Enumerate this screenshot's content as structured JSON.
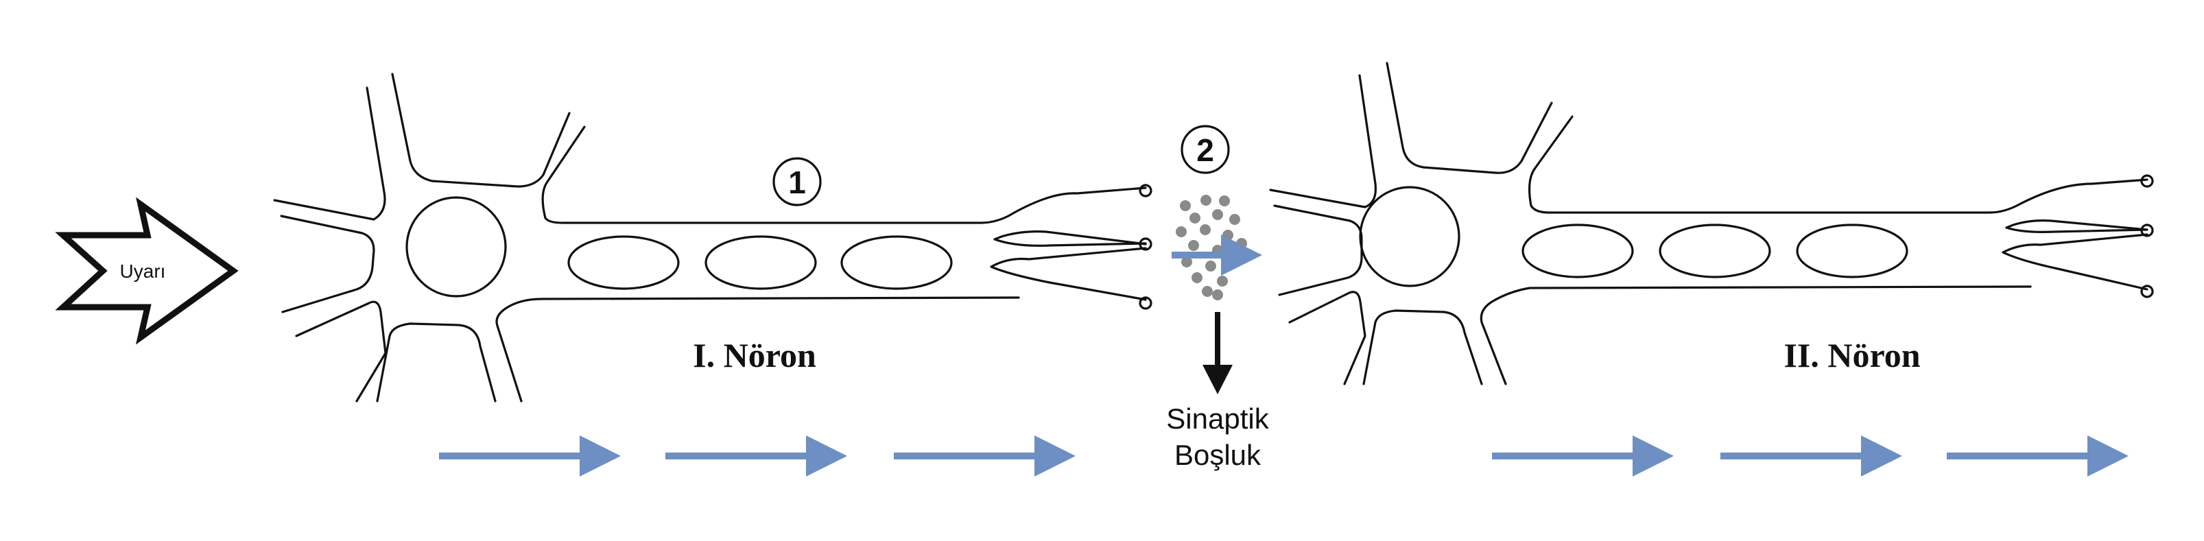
{
  "stimulus": {
    "label": "Uyarı"
  },
  "neuron1": {
    "label": "I. Nöron",
    "marker": "1"
  },
  "neuron2": {
    "label": "II. Nöron"
  },
  "synapse": {
    "marker": "2",
    "label_line1": "Sinaptik",
    "label_line2": "Boşluk"
  },
  "colors": {
    "arrow": "#6d8fc3",
    "dots": "#8a8a8a",
    "stroke": "#111111"
  },
  "icons": [
    "stimulus-arrow-icon",
    "direction-arrow-icon",
    "down-arrow-icon"
  ]
}
